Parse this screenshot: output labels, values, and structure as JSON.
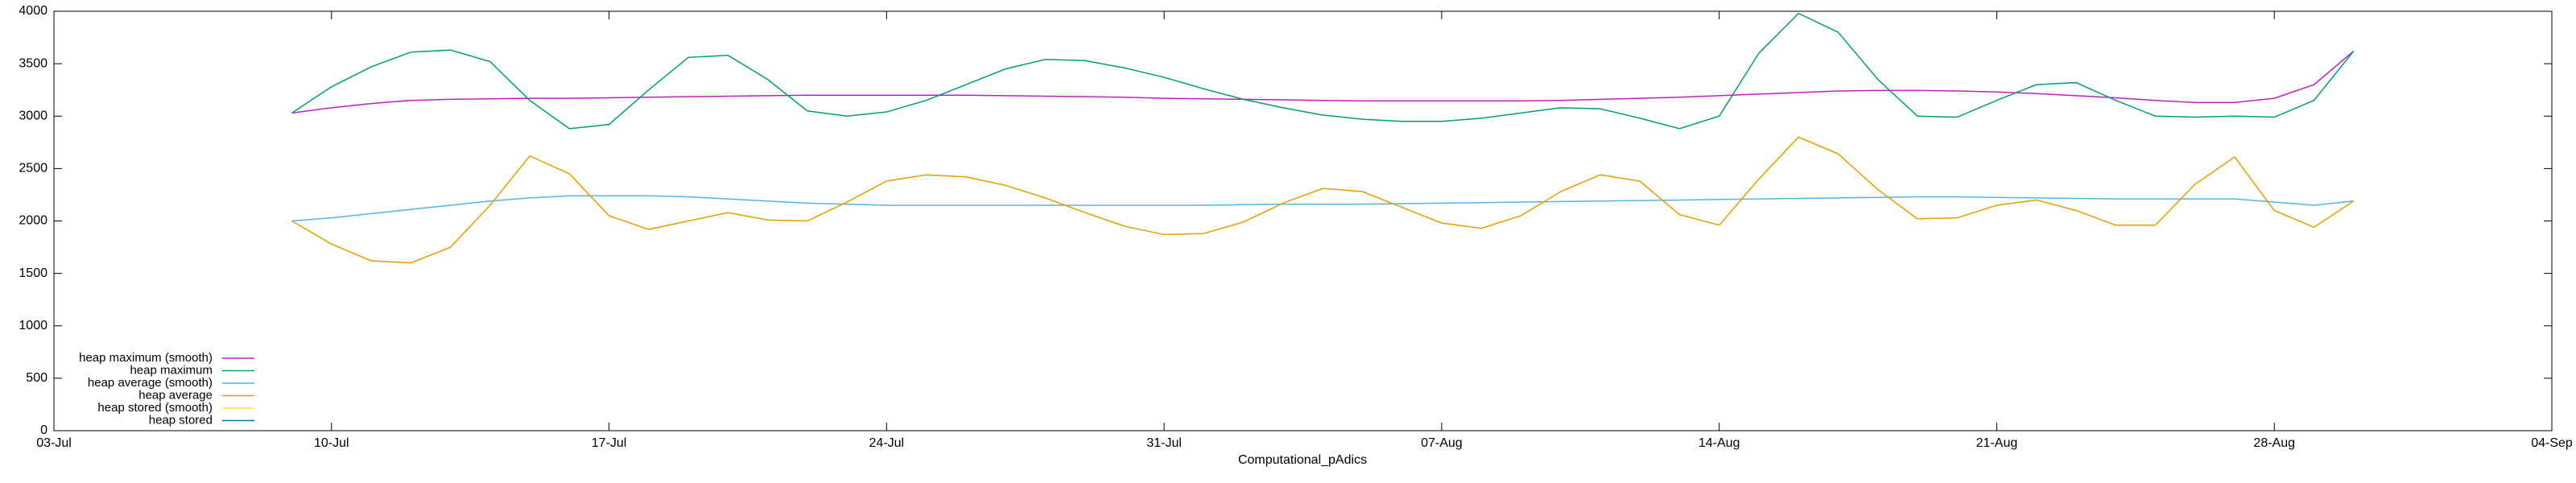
{
  "chart_data": {
    "type": "line",
    "xlabel": "Computational_pAdics",
    "xlim": [
      "03-Jul",
      "04-Sep"
    ],
    "xticks": [
      "03-Jul",
      "10-Jul",
      "17-Jul",
      "24-Jul",
      "31-Jul",
      "07-Aug",
      "14-Aug",
      "21-Aug",
      "28-Aug",
      "04-Sep"
    ],
    "ylim": [
      0,
      4000
    ],
    "yticks": [
      0,
      500,
      1000,
      1500,
      2000,
      2500,
      3000,
      3500,
      4000
    ],
    "grid": false,
    "legend": "bottom-left",
    "x": [
      "09-Jul",
      "10-Jul",
      "11-Jul",
      "12-Jul",
      "13-Jul",
      "14-Jul",
      "15-Jul",
      "16-Jul",
      "17-Jul",
      "18-Jul",
      "19-Jul",
      "20-Jul",
      "21-Jul",
      "22-Jul",
      "23-Jul",
      "24-Jul",
      "25-Jul",
      "26-Jul",
      "27-Jul",
      "28-Jul",
      "29-Jul",
      "30-Jul",
      "31-Jul",
      "01-Aug",
      "02-Aug",
      "03-Aug",
      "04-Aug",
      "05-Aug",
      "06-Aug",
      "07-Aug",
      "08-Aug",
      "09-Aug",
      "10-Aug",
      "11-Aug",
      "12-Aug",
      "13-Aug",
      "14-Aug",
      "15-Aug",
      "16-Aug",
      "17-Aug",
      "18-Aug",
      "19-Aug",
      "20-Aug",
      "21-Aug",
      "22-Aug",
      "23-Aug",
      "24-Aug",
      "25-Aug",
      "26-Aug",
      "27-Aug",
      "28-Aug",
      "29-Aug",
      "30-Aug"
    ],
    "series": [
      {
        "name": "heap maximum (smooth)",
        "color": "#c020c0",
        "values": [
          3030,
          3080,
          3120,
          3150,
          3160,
          3165,
          3170,
          3170,
          3175,
          3180,
          3185,
          3190,
          3195,
          3200,
          3200,
          3200,
          3200,
          3200,
          3195,
          3190,
          3185,
          3180,
          3170,
          3165,
          3160,
          3155,
          3150,
          3145,
          3145,
          3145,
          3145,
          3145,
          3150,
          3160,
          3170,
          3180,
          3195,
          3210,
          3225,
          3240,
          3245,
          3245,
          3240,
          3230,
          3215,
          3195,
          3175,
          3150,
          3130,
          3130,
          3170,
          3300,
          3620
        ]
      },
      {
        "name": "heap maximum",
        "color": "#009e73",
        "values": [
          3030,
          3280,
          3470,
          3610,
          3630,
          3520,
          3150,
          2880,
          2920,
          3250,
          3560,
          3580,
          3350,
          3050,
          3000,
          3040,
          3150,
          3300,
          3450,
          3540,
          3530,
          3460,
          3370,
          3260,
          3160,
          3080,
          3010,
          2970,
          2950,
          2950,
          2980,
          3030,
          3080,
          3070,
          2980,
          2880,
          3000,
          3600,
          3980,
          3800,
          3350,
          3000,
          2990,
          3150,
          3300,
          3320,
          3150,
          3000,
          2990,
          3000,
          2990,
          3150,
          3620
        ]
      },
      {
        "name": "heap average (smooth)",
        "color": "#56b4e9",
        "values": [
          2000,
          2030,
          2070,
          2110,
          2150,
          2190,
          2220,
          2240,
          2240,
          2240,
          2230,
          2210,
          2190,
          2170,
          2160,
          2150,
          2150,
          2150,
          2150,
          2150,
          2150,
          2150,
          2150,
          2150,
          2155,
          2160,
          2160,
          2160,
          2165,
          2170,
          2175,
          2180,
          2185,
          2190,
          2195,
          2200,
          2205,
          2210,
          2215,
          2220,
          2225,
          2230,
          2230,
          2225,
          2220,
          2215,
          2210,
          2210,
          2210,
          2210,
          2180,
          2150,
          2190
        ]
      },
      {
        "name": "heap average",
        "color": "#e69f00",
        "values": [
          2000,
          1780,
          1620,
          1600,
          1750,
          2150,
          2620,
          2450,
          2050,
          1920,
          2000,
          2080,
          2010,
          2000,
          2180,
          2380,
          2440,
          2420,
          2340,
          2220,
          2080,
          1950,
          1870,
          1880,
          1990,
          2170,
          2310,
          2280,
          2130,
          1980,
          1930,
          2050,
          2280,
          2440,
          2380,
          2060,
          1960,
          2400,
          2800,
          2640,
          2300,
          2020,
          2030,
          2150,
          2200,
          2100,
          1960,
          1960,
          2350,
          2610,
          2100,
          1940,
          2190
        ]
      },
      {
        "name": "heap stored (smooth)",
        "color": "#f0e442",
        "values": [
          null,
          null,
          null,
          null,
          null,
          null,
          null,
          null,
          null,
          null,
          null,
          null,
          null,
          null,
          null,
          null,
          null,
          null,
          null,
          null,
          null,
          null,
          null,
          null,
          null,
          null,
          null,
          null,
          null,
          null,
          null,
          null,
          null,
          null,
          null,
          null,
          null,
          null,
          null,
          null,
          null,
          null,
          null,
          null,
          null,
          null,
          null,
          null,
          null,
          null,
          null,
          null,
          null
        ]
      },
      {
        "name": "heap stored",
        "color": "#0072b2",
        "values": [
          null,
          null,
          null,
          null,
          null,
          null,
          null,
          null,
          null,
          null,
          null,
          null,
          null,
          null,
          null,
          null,
          null,
          null,
          null,
          null,
          null,
          null,
          null,
          null,
          null,
          null,
          null,
          null,
          null,
          null,
          null,
          null,
          null,
          null,
          null,
          null,
          null,
          null,
          null,
          null,
          null,
          null,
          null,
          null,
          null,
          null,
          null,
          null,
          null,
          null,
          null,
          null,
          null
        ]
      }
    ]
  }
}
